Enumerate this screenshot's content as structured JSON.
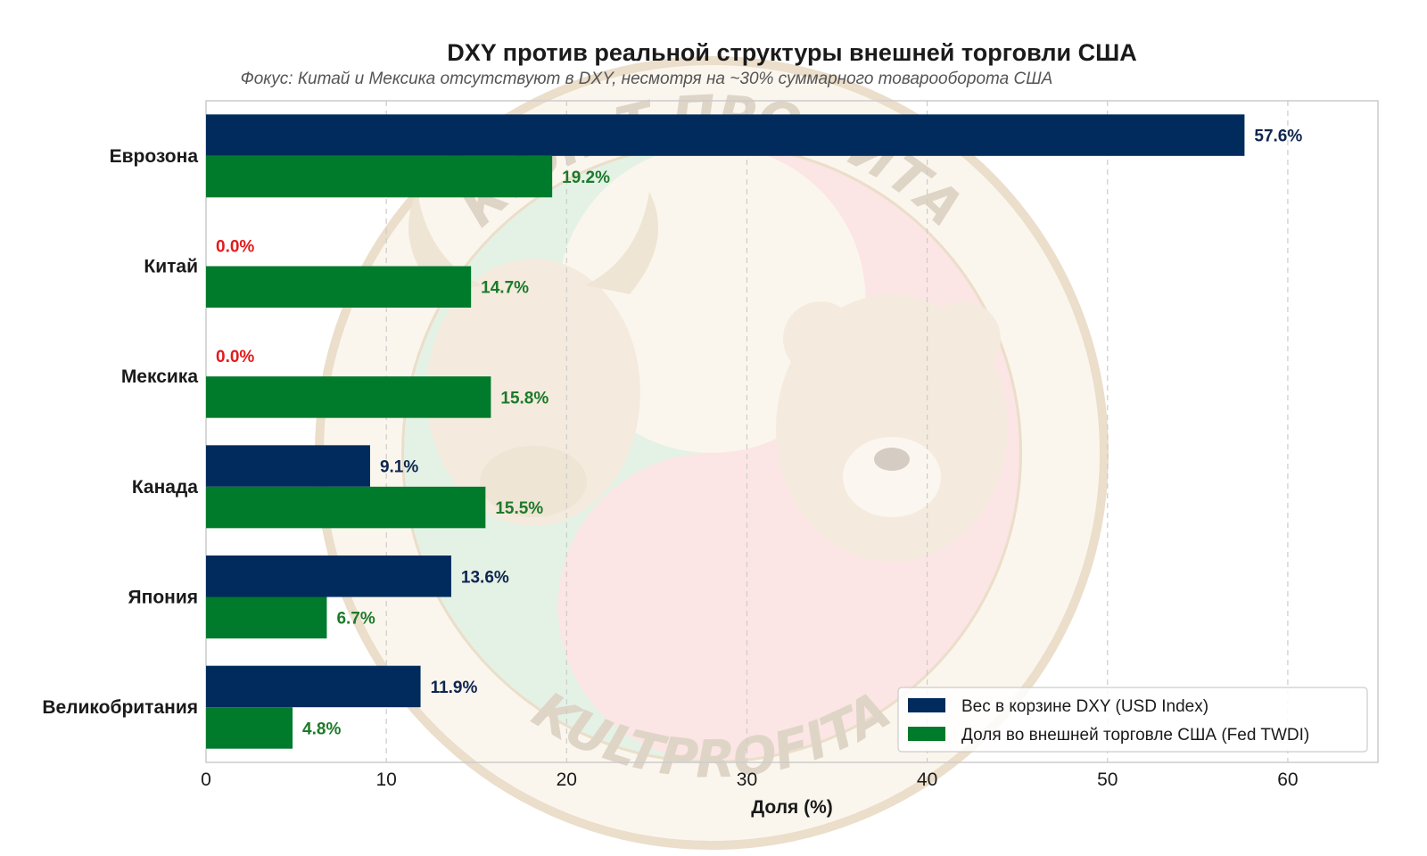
{
  "chart_data": {
    "type": "bar",
    "orientation": "horizontal",
    "title": "DXY против реальной структуры внешней торговли США",
    "subtitle": "Фокус: Китай и Мексика отсутствуют в DXY, несмотря на ~30% суммарного товарооборота США",
    "xlabel": "Доля (%)",
    "xlim": [
      0,
      65
    ],
    "xticks": [
      0,
      10,
      20,
      30,
      40,
      50,
      60
    ],
    "grid": "x-dashed",
    "legend_position": "bottom-right",
    "categories": [
      "Еврозона",
      "Китай",
      "Мексика",
      "Канада",
      "Япония",
      "Великобритания"
    ],
    "series": [
      {
        "name": "Вес в корзине DXY (USD Index)",
        "color": "#002b5c",
        "label_color": "#0f2550",
        "values": [
          57.6,
          0.0,
          0.0,
          9.1,
          13.6,
          11.9
        ],
        "labels": [
          "57.6%",
          "0.0%",
          "0.0%",
          "9.1%",
          "13.6%",
          "11.9%"
        ]
      },
      {
        "name": "Доля во внешней торговле США (Fed TWDI)",
        "color": "#007a2b",
        "label_color": "#1c7a2a",
        "values": [
          19.2,
          14.7,
          15.8,
          15.5,
          6.7,
          4.8
        ],
        "labels": [
          "19.2%",
          "14.7%",
          "15.8%",
          "15.5%",
          "6.7%",
          "4.8%"
        ]
      }
    ],
    "zero_label_color": "#e31a1c"
  },
  "watermark": {
    "top_text": "КУЛЬТ ПРОФИТА",
    "bottom_text": "KULTPROFITA"
  },
  "colors": {
    "watermark_ring": "#c9a36a",
    "watermark_green": "#cfe8d2",
    "watermark_red": "#f7cfcf",
    "grid": "#cccccc",
    "frame": "#cccccc"
  }
}
